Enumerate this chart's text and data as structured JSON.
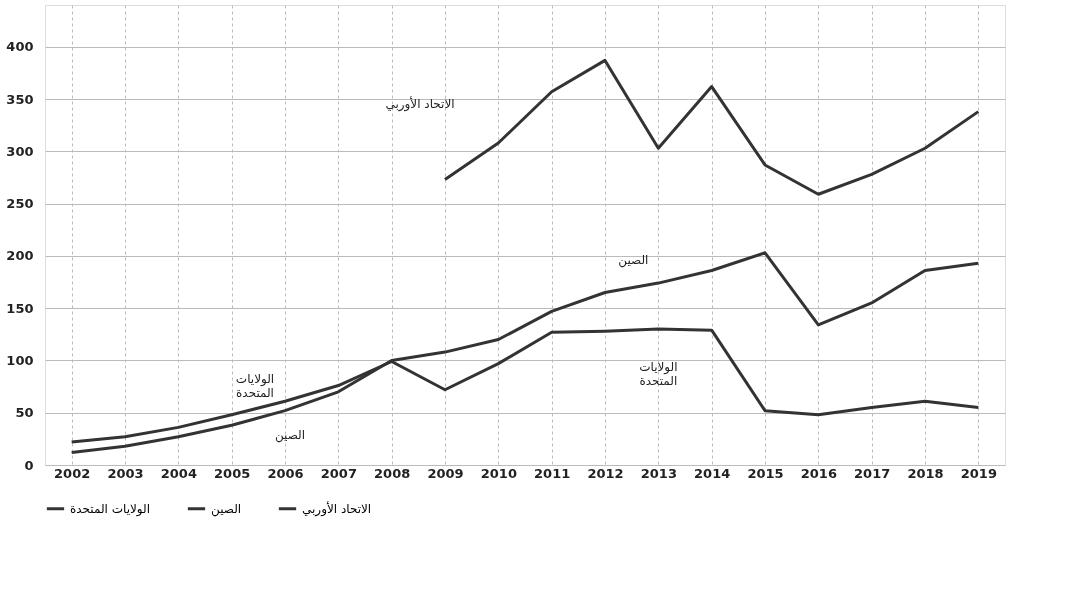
{
  "chart_data": {
    "type": "line",
    "categories": [
      "2002",
      "2003",
      "2004",
      "2005",
      "2006",
      "2007",
      "2008",
      "2009",
      "2010",
      "2011",
      "2012",
      "2013",
      "2014",
      "2015",
      "2016",
      "2017",
      "2018",
      "2019"
    ],
    "series": [
      {
        "name": "الولايات المتحدة",
        "color": "#333333",
        "values": [
          22,
          27,
          36,
          48,
          61,
          76,
          99,
          72,
          97,
          127,
          128,
          130,
          129,
          52,
          48,
          55,
          61,
          55
        ]
      },
      {
        "name": "الصين",
        "color": "#333333",
        "values": [
          12,
          18,
          27,
          38,
          52,
          70,
          100,
          108,
          120,
          147,
          165,
          174,
          186,
          203,
          134,
          155,
          186,
          193
        ]
      },
      {
        "name": "الاتحاد الأوربي",
        "color": "#333333",
        "values": [
          null,
          null,
          null,
          null,
          null,
          null,
          null,
          273,
          308,
          357,
          387,
          303,
          362,
          287,
          259,
          278,
          303,
          338
        ]
      }
    ],
    "ylim": [
      0,
      440
    ],
    "yticks": [
      0,
      50,
      100,
      150,
      200,
      250,
      300,
      350,
      400
    ],
    "grid": true,
    "legend": "bottom",
    "marker": "none",
    "line_style": "solid",
    "annotations": [
      "الاتحاد الأوربي",
      "الصين",
      "الولايات\nالمتحدة",
      "الصين",
      "الولايات\nالمتحدة"
    ]
  }
}
